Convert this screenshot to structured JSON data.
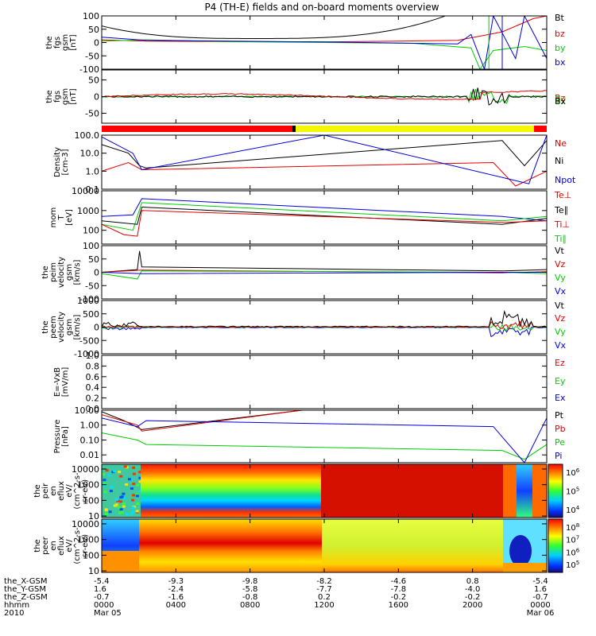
{
  "title": "P4 (TH-E) fields and on-board moments overview",
  "colors": {
    "black": "#000000",
    "red": "#e00000",
    "green": "#00cc00",
    "blue": "#0000e0",
    "yellow": "#f5f500",
    "bar_red": "#ff0000",
    "bar_black": "#000000"
  },
  "chart_data": [
    {
      "type": "line",
      "ylabel": [
        "the",
        "fgs",
        "gsm",
        "[nT]"
      ],
      "ylim": [
        -100,
        100
      ],
      "ticks": [
        "100",
        "50",
        "0",
        "-50",
        "-100"
      ],
      "legend": [
        {
          "label": "Bt",
          "color": "#000000"
        },
        {
          "label": "bz",
          "color": "#e00000"
        },
        {
          "label": "by",
          "color": "#00cc00"
        },
        {
          "label": "bx",
          "color": "#0000e0"
        }
      ]
    },
    {
      "type": "line",
      "ylabel": [
        "the",
        "fgs",
        "gsm",
        "[nT]"
      ],
      "ylim": [
        -80,
        80
      ],
      "ticks": [
        "50",
        "0",
        "-50"
      ],
      "legend": [
        {
          "label": "Bz",
          "color": "#e00000"
        },
        {
          "label": "By",
          "color": "#00cc00"
        },
        {
          "label": "Bx",
          "color": "#000000"
        }
      ]
    },
    {
      "type": "line",
      "ylabel": [
        "Density",
        "[cm-3]"
      ],
      "ylim": [
        0.1,
        100.0
      ],
      "scale": "log",
      "ticks": [
        "100.0",
        "10.0",
        "1.0",
        "0.1"
      ],
      "legend": [
        {
          "label": "Ne",
          "color": "#e00000"
        },
        {
          "label": "Ni",
          "color": "#000000"
        },
        {
          "label": "Npot",
          "color": "#0000e0"
        }
      ]
    },
    {
      "type": "line",
      "ylabel": [
        "mom",
        "T",
        "[eV]"
      ],
      "ylim": [
        20,
        10000
      ],
      "scale": "log",
      "ticks": [
        "10000",
        "1000",
        "100"
      ],
      "legend": [
        {
          "label": "Te⊥",
          "color": "#e00000"
        },
        {
          "label": "Te∥",
          "color": "#000000"
        },
        {
          "label": "Ti⊥",
          "color": "#e00000"
        },
        {
          "label": "Ti∥",
          "color": "#00cc00"
        }
      ]
    },
    {
      "type": "line",
      "ylabel": [
        "the",
        "peim",
        "velocity",
        "gsm",
        "[km/s]"
      ],
      "ylim": [
        -100,
        100
      ],
      "ticks": [
        "100",
        "50",
        "0",
        "-50",
        "-100"
      ],
      "legend": [
        {
          "label": "Vt",
          "color": "#000000"
        },
        {
          "label": "Vz",
          "color": "#e00000"
        },
        {
          "label": "Vy",
          "color": "#00cc00"
        },
        {
          "label": "Vx",
          "color": "#0000e0"
        }
      ]
    },
    {
      "type": "line",
      "ylabel": [
        "the",
        "peem",
        "velocity",
        "gsm",
        "[km/s]"
      ],
      "ylim": [
        -1000,
        1000
      ],
      "ticks": [
        "1000",
        "500",
        "0",
        "-500",
        "-1000"
      ],
      "legend": [
        {
          "label": "Vt",
          "color": "#000000"
        },
        {
          "label": "Vz",
          "color": "#e00000"
        },
        {
          "label": "Vy",
          "color": "#00cc00"
        },
        {
          "label": "Vx",
          "color": "#0000e0"
        }
      ]
    },
    {
      "type": "line",
      "ylabel": [
        "E=-VxB",
        "[mV/m]"
      ],
      "ylim": [
        0.0,
        1.0
      ],
      "ticks": [
        "1.0",
        "0.8",
        "0.6",
        "0.4",
        "0.2",
        "0.0"
      ],
      "legend": [
        {
          "label": "Ez",
          "color": "#e00000"
        },
        {
          "label": "Ey",
          "color": "#00cc00"
        },
        {
          "label": "Ex",
          "color": "#0000e0"
        }
      ]
    },
    {
      "type": "line",
      "ylabel": [
        "Pressure",
        "[nPa]"
      ],
      "ylim": [
        0.003,
        10.0
      ],
      "scale": "log",
      "ticks": [
        "10.00",
        "1.00",
        "0.10",
        "0.01"
      ],
      "legend": [
        {
          "label": "Pt",
          "color": "#000000"
        },
        {
          "label": "Pb",
          "color": "#e00000"
        },
        {
          "label": "Pe",
          "color": "#00cc00"
        },
        {
          "label": "Pi",
          "color": "#0000e0"
        }
      ]
    },
    {
      "type": "heatmap",
      "ylabel": [
        "the",
        "peir",
        "en",
        "eflux",
        "eV/",
        "(cm^2-s-",
        "sr-eV)"
      ],
      "ylim": [
        8,
        20000
      ],
      "scale": "log",
      "ticks": [
        "10000",
        "1000",
        "100",
        "10"
      ],
      "colorbar": {
        "ticks": [
          "10^6",
          "10^5",
          "10^4"
        ]
      }
    },
    {
      "type": "heatmap",
      "ylabel": [
        "the",
        "peer",
        "en",
        "eflux",
        "eV/",
        "(cm^2-s-",
        "sr-eV)"
      ],
      "ylim": [
        8,
        20000
      ],
      "scale": "log",
      "ticks": [
        "10000",
        "1000",
        "100",
        "10"
      ],
      "colorbar": {
        "ticks": [
          "10^8",
          "10^7",
          "10^6",
          "10^5"
        ]
      }
    }
  ],
  "x_axis": {
    "rows": [
      {
        "label": "the_X-GSM",
        "values": [
          "-5.4",
          "-9.3",
          "-9.8",
          "-8.2",
          "-4.6",
          "0.8",
          "-5.4"
        ]
      },
      {
        "label": "the_Y-GSM",
        "values": [
          "1.6",
          "-2.4",
          "-5.8",
          "-7.7",
          "-7.8",
          "-4.0",
          "1.6"
        ]
      },
      {
        "label": "the_Z-GSM",
        "values": [
          "-0.7",
          "-1.6",
          "-0.8",
          "0.2",
          "-0.2",
          "-0.2",
          "-0.7"
        ]
      },
      {
        "label": "hhmm",
        "values": [
          "0000",
          "0400",
          "0800",
          "1200",
          "1600",
          "2000",
          "0000"
        ]
      },
      {
        "label": "2010",
        "values": [
          "Mar 05",
          "",
          "",
          "",
          "",
          "",
          "Mar 06"
        ]
      }
    ]
  }
}
